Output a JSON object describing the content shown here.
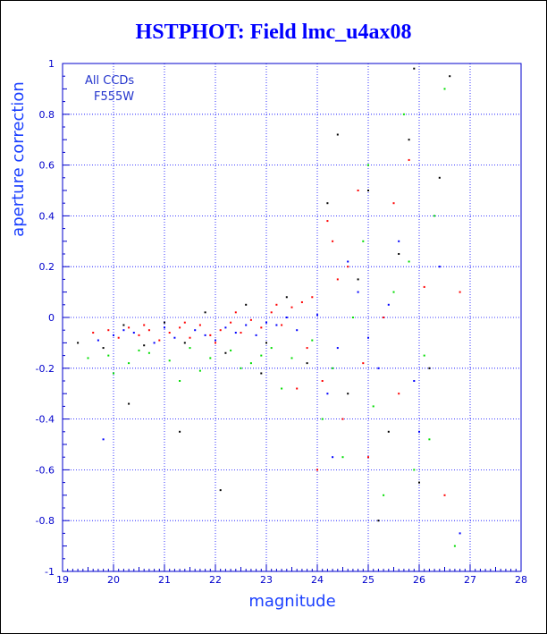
{
  "chart_data": {
    "type": "scatter",
    "title": "HSTPHOT: Field lmc_u4ax08",
    "xlabel": "magnitude",
    "ylabel": "aperture correction",
    "xlim": [
      19,
      28
    ],
    "ylim": [
      -1,
      1
    ],
    "x_ticks": [
      19,
      20,
      21,
      22,
      23,
      24,
      25,
      26,
      27,
      28
    ],
    "y_ticks": [
      -1,
      -0.8,
      -0.6,
      -0.4,
      -0.2,
      0,
      0.2,
      0.4,
      0.6,
      0.8,
      1
    ],
    "x_tick_labels": [
      "19",
      "20",
      "21",
      "22",
      "23",
      "24",
      "25",
      "26",
      "27",
      "28"
    ],
    "y_tick_labels": [
      "-1",
      "-0.8",
      "-0.6",
      "-0.4",
      "-0.2",
      "0",
      "0.2",
      "0.4",
      "0.6",
      "0.8",
      "1"
    ],
    "grid": true,
    "annotations": [
      "All CCDs",
      "F555W"
    ],
    "series": [
      {
        "color": "#ff0000",
        "points": [
          [
            19.6,
            -0.06
          ],
          [
            19.9,
            -0.05
          ],
          [
            20.1,
            -0.08
          ],
          [
            20.3,
            -0.04
          ],
          [
            20.5,
            -0.07
          ],
          [
            20.7,
            -0.05
          ],
          [
            20.9,
            -0.09
          ],
          [
            21.1,
            -0.06
          ],
          [
            21.3,
            -0.04
          ],
          [
            21.5,
            -0.08
          ],
          [
            21.7,
            -0.03
          ],
          [
            21.9,
            -0.07
          ],
          [
            22.1,
            -0.05
          ],
          [
            22.3,
            -0.02
          ],
          [
            22.5,
            -0.06
          ],
          [
            22.7,
            -0.01
          ],
          [
            22.9,
            -0.04
          ],
          [
            23.1,
            0.02
          ],
          [
            23.3,
            -0.03
          ],
          [
            23.5,
            0.04
          ],
          [
            23.7,
            0.06
          ],
          [
            23.9,
            0.08
          ],
          [
            24.1,
            -0.25
          ],
          [
            24.3,
            0.3
          ],
          [
            24.5,
            -0.4
          ],
          [
            24.6,
            0.2
          ],
          [
            24.8,
            0.5
          ],
          [
            25.0,
            -0.55
          ],
          [
            25.3,
            0.0
          ],
          [
            25.6,
            -0.3
          ],
          [
            26.1,
            0.12
          ],
          [
            22.0,
            -0.1
          ],
          [
            22.4,
            0.02
          ],
          [
            23.2,
            0.05
          ],
          [
            23.8,
            -0.12
          ],
          [
            24.4,
            0.15
          ],
          [
            24.9,
            -0.18
          ],
          [
            25.5,
            0.45
          ],
          [
            26.5,
            -0.7
          ],
          [
            23.6,
            -0.28
          ],
          [
            24.2,
            0.38
          ],
          [
            25.8,
            0.62
          ],
          [
            26.8,
            0.1
          ],
          [
            24.0,
            -0.6
          ],
          [
            21.4,
            -0.02
          ],
          [
            20.6,
            -0.03
          ]
        ]
      },
      {
        "color": "#0000ff",
        "points": [
          [
            19.7,
            -0.09
          ],
          [
            20.0,
            -0.07
          ],
          [
            20.4,
            -0.06
          ],
          [
            20.8,
            -0.1
          ],
          [
            21.2,
            -0.08
          ],
          [
            21.6,
            -0.05
          ],
          [
            22.0,
            -0.09
          ],
          [
            22.4,
            -0.06
          ],
          [
            22.8,
            -0.07
          ],
          [
            23.2,
            -0.03
          ],
          [
            23.6,
            -0.05
          ],
          [
            24.0,
            0.01
          ],
          [
            24.4,
            -0.12
          ],
          [
            24.8,
            0.1
          ],
          [
            25.2,
            -0.2
          ],
          [
            25.6,
            0.3
          ],
          [
            26.0,
            -0.45
          ],
          [
            26.4,
            0.2
          ],
          [
            22.2,
            -0.04
          ],
          [
            23.0,
            -0.02
          ],
          [
            23.4,
            0.0
          ],
          [
            21.8,
            -0.07
          ],
          [
            24.2,
            -0.3
          ],
          [
            24.6,
            0.22
          ],
          [
            25.0,
            -0.08
          ],
          [
            25.4,
            0.05
          ],
          [
            20.2,
            -0.05
          ],
          [
            26.8,
            -0.85
          ],
          [
            19.8,
            -0.48
          ],
          [
            24.3,
            -0.55
          ],
          [
            25.9,
            -0.25
          ],
          [
            21.0,
            -0.04
          ],
          [
            22.6,
            -0.03
          ]
        ]
      },
      {
        "color": "#00dd00",
        "points": [
          [
            19.5,
            -0.16
          ],
          [
            19.9,
            -0.15
          ],
          [
            20.3,
            -0.18
          ],
          [
            20.7,
            -0.14
          ],
          [
            21.1,
            -0.17
          ],
          [
            21.5,
            -0.12
          ],
          [
            21.9,
            -0.16
          ],
          [
            22.3,
            -0.13
          ],
          [
            22.7,
            -0.18
          ],
          [
            23.1,
            -0.12
          ],
          [
            23.5,
            -0.16
          ],
          [
            23.9,
            -0.09
          ],
          [
            24.3,
            -0.2
          ],
          [
            24.7,
            0.0
          ],
          [
            25.1,
            -0.35
          ],
          [
            25.5,
            0.1
          ],
          [
            25.9,
            -0.6
          ],
          [
            26.3,
            0.4
          ],
          [
            26.7,
            -0.9
          ],
          [
            20.0,
            -0.22
          ],
          [
            21.3,
            -0.25
          ],
          [
            22.5,
            -0.2
          ],
          [
            23.3,
            -0.28
          ],
          [
            24.1,
            -0.4
          ],
          [
            24.9,
            0.3
          ],
          [
            25.3,
            -0.7
          ],
          [
            25.7,
            0.8
          ],
          [
            26.1,
            -0.15
          ],
          [
            26.5,
            0.9
          ],
          [
            24.5,
            -0.55
          ],
          [
            25.0,
            0.6
          ],
          [
            25.8,
            0.22
          ],
          [
            26.2,
            -0.48
          ],
          [
            22.9,
            -0.15
          ],
          [
            21.7,
            -0.21
          ],
          [
            20.5,
            -0.13
          ]
        ]
      },
      {
        "color": "#000000",
        "points": [
          [
            19.3,
            -0.1
          ],
          [
            19.8,
            -0.12
          ],
          [
            20.2,
            -0.03
          ],
          [
            20.6,
            -0.11
          ],
          [
            21.0,
            -0.02
          ],
          [
            21.4,
            -0.1
          ],
          [
            21.8,
            0.02
          ],
          [
            22.2,
            -0.14
          ],
          [
            22.6,
            0.05
          ],
          [
            23.0,
            -0.1
          ],
          [
            23.4,
            0.08
          ],
          [
            23.8,
            -0.18
          ],
          [
            24.2,
            0.45
          ],
          [
            24.6,
            -0.3
          ],
          [
            25.0,
            0.5
          ],
          [
            25.4,
            -0.45
          ],
          [
            25.8,
            0.7
          ],
          [
            26.2,
            -0.2
          ],
          [
            26.6,
            0.95
          ],
          [
            24.4,
            0.72
          ],
          [
            25.2,
            -0.8
          ],
          [
            25.6,
            0.25
          ],
          [
            26.0,
            -0.65
          ],
          [
            24.8,
            0.15
          ],
          [
            22.9,
            -0.22
          ],
          [
            21.3,
            -0.45
          ],
          [
            20.3,
            -0.34
          ],
          [
            22.1,
            -0.68
          ],
          [
            26.4,
            0.55
          ],
          [
            25.9,
            0.98
          ]
        ]
      }
    ]
  }
}
